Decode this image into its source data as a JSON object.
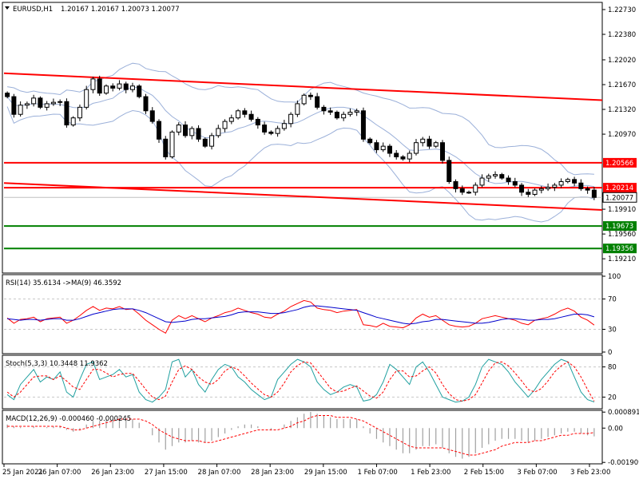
{
  "header": {
    "symbol": "EURUSD,H1",
    "ohlc": "1.20167 1.20167 1.20073 1.20077"
  },
  "colors": {
    "candle_body": "#000000",
    "channel_line": "#ff0000",
    "support_line": "#008000",
    "bollinger": "#9bb0d9",
    "rsi_line": "#ff0000",
    "rsi_ma": "#0000cc",
    "stoch_main": "#20a0a0",
    "stoch_signal": "#ff0000",
    "macd_hist": "#a0a0a0",
    "macd_signal": "#ff0000",
    "grid": "#c8c8c8"
  },
  "chart_data": [
    {
      "type": "candlestick",
      "name": "main",
      "ylim": [
        1.1902,
        1.2282
      ],
      "y_ticks": [
        "1.22730",
        "1.22380",
        "1.22020",
        "1.21670",
        "1.21320",
        "1.20970",
        "1.19910",
        "1.19560",
        "1.19210"
      ],
      "current_price": "1.20077",
      "x_labels": [
        "25 Jan 2021",
        "26 Jan 07:00",
        "26 Jan 23:00",
        "27 Jan 15:00",
        "28 Jan 07:00",
        "28 Jan 23:00",
        "29 Jan 15:00",
        "1 Feb 07:00",
        "1 Feb 23:00",
        "2 Feb 15:00",
        "3 Feb 07:00",
        "3 Feb 23:00"
      ],
      "close": [
        1.215,
        1.2125,
        1.2138,
        1.214,
        1.2148,
        1.2135,
        1.214,
        1.2142,
        1.2143,
        1.211,
        1.212,
        1.2135,
        1.216,
        1.2175,
        1.2155,
        1.2165,
        1.2162,
        1.2168,
        1.216,
        1.2165,
        1.215,
        1.213,
        1.2115,
        1.209,
        1.2065,
        1.21,
        1.211,
        1.2095,
        1.2105,
        1.209,
        1.208,
        1.2095,
        1.2105,
        1.2115,
        1.212,
        1.213,
        1.2125,
        1.2118,
        1.211,
        1.21,
        1.2098,
        1.2105,
        1.2112,
        1.2125,
        1.214,
        1.2152,
        1.215,
        1.2135,
        1.213,
        1.2128,
        1.212,
        1.2125,
        1.2128,
        1.213,
        1.209,
        1.2085,
        1.2075,
        1.208,
        1.207,
        1.2065,
        1.2062,
        1.207,
        1.2085,
        1.209,
        1.208,
        1.2085,
        1.206,
        1.203,
        1.202,
        1.2015,
        1.2015,
        1.2025,
        1.2035,
        1.2038,
        1.204,
        1.2035,
        1.203,
        1.2025,
        1.2015,
        1.2012,
        1.2018,
        1.202,
        1.2022,
        1.2025,
        1.203,
        1.2033,
        1.2028,
        1.202,
        1.2018,
        1.20077
      ],
      "high_low_spread": 0.0012,
      "channel_top": {
        "from": 1.2183,
        "to": 1.2145
      },
      "channel_bottom": {
        "from": 1.2028,
        "to": 1.199
      },
      "horizontal_levels": [
        {
          "value": 1.20566,
          "label": "1.20566",
          "kind": "resistance"
        },
        {
          "value": 1.20214,
          "label": "1.20214",
          "kind": "resistance"
        },
        {
          "value": 1.19673,
          "label": "1.19673",
          "kind": "support"
        },
        {
          "value": 1.19356,
          "label": "1.19356",
          "kind": "support"
        }
      ],
      "bollinger_width": 0.0035
    },
    {
      "type": "line",
      "name": "rsi",
      "title": "RSI(14) 35.6134 ->MA(9) 46.3592",
      "ylim": [
        0,
        100
      ],
      "y_ticks": [
        "100",
        "70",
        "30",
        "0"
      ],
      "levels": [
        70,
        30
      ],
      "rsi": [
        45,
        38,
        43,
        44,
        46,
        40,
        44,
        45,
        46,
        38,
        42,
        48,
        55,
        60,
        55,
        58,
        57,
        60,
        56,
        57,
        50,
        42,
        36,
        30,
        25,
        42,
        48,
        44,
        48,
        44,
        40,
        45,
        48,
        52,
        54,
        58,
        55,
        52,
        50,
        46,
        45,
        50,
        54,
        60,
        64,
        68,
        66,
        58,
        56,
        55,
        52,
        54,
        55,
        56,
        36,
        35,
        33,
        38,
        34,
        33,
        32,
        36,
        45,
        50,
        46,
        48,
        42,
        36,
        34,
        33,
        34,
        38,
        44,
        46,
        48,
        46,
        44,
        42,
        38,
        36,
        42,
        44,
        46,
        50,
        55,
        58,
        54,
        46,
        42,
        35.6
      ],
      "ma": [
        44,
        43,
        42,
        43,
        43,
        42,
        43,
        44,
        44,
        42,
        42,
        44,
        47,
        50,
        52,
        54,
        56,
        57,
        57,
        57,
        55,
        52,
        48,
        44,
        40,
        39,
        40,
        41,
        43,
        44,
        44,
        45,
        46,
        47,
        49,
        52,
        53,
        53,
        53,
        52,
        51,
        51,
        52,
        54,
        56,
        59,
        61,
        61,
        60,
        59,
        58,
        57,
        56,
        55,
        52,
        49,
        46,
        44,
        42,
        40,
        38,
        37,
        38,
        40,
        41,
        43,
        43,
        42,
        41,
        40,
        39,
        38,
        38,
        39,
        41,
        43,
        44,
        44,
        43,
        42,
        42,
        43,
        43,
        44,
        46,
        48,
        50,
        50,
        49,
        46.4
      ]
    },
    {
      "type": "line",
      "name": "stochastic",
      "title": "Stoch(5,3,3) 10.3448 11.9362",
      "ylim": [
        0,
        100
      ],
      "y_ticks": [
        "80",
        "20"
      ],
      "levels": [
        80,
        20
      ],
      "main": [
        25,
        15,
        45,
        60,
        75,
        50,
        60,
        55,
        70,
        30,
        20,
        55,
        85,
        90,
        55,
        60,
        65,
        75,
        60,
        65,
        30,
        15,
        10,
        20,
        35,
        90,
        95,
        60,
        75,
        45,
        30,
        55,
        75,
        85,
        80,
        60,
        50,
        35,
        25,
        15,
        20,
        55,
        70,
        85,
        95,
        90,
        80,
        50,
        35,
        25,
        30,
        40,
        45,
        40,
        12,
        15,
        25,
        50,
        85,
        75,
        60,
        45,
        80,
        90,
        70,
        45,
        20,
        15,
        10,
        12,
        20,
        45,
        80,
        95,
        90,
        85,
        70,
        50,
        35,
        20,
        35,
        55,
        70,
        85,
        95,
        90,
        60,
        30,
        15,
        10.3
      ],
      "signal": [
        30,
        20,
        30,
        45,
        60,
        62,
        62,
        55,
        62,
        52,
        40,
        35,
        55,
        75,
        75,
        68,
        60,
        65,
        67,
        67,
        52,
        35,
        20,
        15,
        22,
        50,
        75,
        82,
        75,
        60,
        50,
        45,
        55,
        72,
        80,
        75,
        62,
        48,
        36,
        25,
        20,
        30,
        48,
        70,
        83,
        90,
        88,
        72,
        55,
        38,
        30,
        32,
        38,
        42,
        32,
        22,
        18,
        30,
        55,
        72,
        72,
        60,
        62,
        72,
        80,
        68,
        45,
        27,
        15,
        12,
        15,
        25,
        48,
        72,
        88,
        90,
        82,
        68,
        52,
        35,
        30,
        37,
        52,
        70,
        82,
        90,
        80,
        60,
        35,
        11.9
      ]
    },
    {
      "type": "bar",
      "name": "macd",
      "title": "MACD(12,26,9) -0.000460 -0.000245",
      "ylim": [
        -0.0019,
        0.0009
      ],
      "y_ticks": [
        "0.000891",
        "0.00",
        "-0.001909"
      ],
      "histogram": [
        0.0002,
        0.0001,
        5e-05,
        0.0,
        0.0001,
        0.0,
        5e-05,
        0.0001,
        0.00012,
        -0.0001,
        -0.0002,
        -0.0001,
        0.0002,
        0.0004,
        0.0004,
        0.0005,
        0.0005,
        0.0006,
        0.0005,
        0.0005,
        0.0003,
        0.0,
        -0.0004,
        -0.0008,
        -0.0012,
        -0.001,
        -0.0008,
        -0.0008,
        -0.0007,
        -0.0008,
        -0.0008,
        -0.0007,
        -0.0005,
        -0.0003,
        -0.0001,
        0.0001,
        0.0002,
        0.0002,
        0.0001,
        0.0,
        -0.0001,
        0.0,
        0.0002,
        0.0004,
        0.0006,
        0.0008,
        0.0009,
        0.0008,
        0.0007,
        0.0006,
        0.0005,
        0.0005,
        0.0005,
        0.0005,
        0.0001,
        -0.0003,
        -0.0006,
        -0.0008,
        -0.001,
        -0.0012,
        -0.0014,
        -0.0014,
        -0.0012,
        -0.001,
        -0.001,
        -0.0009,
        -0.0011,
        -0.0014,
        -0.0016,
        -0.0017,
        -0.0016,
        -0.0014,
        -0.0011,
        -0.0009,
        -0.0007,
        -0.0006,
        -0.0006,
        -0.0006,
        -0.0007,
        -0.0008,
        -0.0007,
        -0.0006,
        -0.0005,
        -0.0004,
        -0.0003,
        -0.0002,
        -0.0002,
        -0.0003,
        -0.0004,
        -0.00046
      ],
      "signal": [
        0.0001,
        0.0001,
        0.0001,
        0.0001,
        0.0001,
        0.0001,
        0.0001,
        0.0001,
        0.0001,
        0.0,
        -0.0001,
        -0.0001,
        0.0,
        0.0001,
        0.0002,
        0.0003,
        0.0004,
        0.0005,
        0.0005,
        0.0005,
        0.0005,
        0.0004,
        0.0002,
        -0.0001,
        -0.0003,
        -0.0005,
        -0.0006,
        -0.0007,
        -0.0007,
        -0.0007,
        -0.0008,
        -0.0008,
        -0.0007,
        -0.0006,
        -0.0005,
        -0.0004,
        -0.0003,
        -0.0002,
        -0.0001,
        -0.0001,
        -0.0001,
        -0.0001,
        0.0,
        0.0001,
        0.0003,
        0.0004,
        0.0006,
        0.0007,
        0.0007,
        0.0007,
        0.0006,
        0.0006,
        0.0006,
        0.0005,
        0.0004,
        0.0002,
        0.0,
        -0.0002,
        -0.0004,
        -0.0006,
        -0.0008,
        -0.001,
        -0.0011,
        -0.0011,
        -0.0011,
        -0.0011,
        -0.0011,
        -0.0012,
        -0.0013,
        -0.0014,
        -0.0015,
        -0.0015,
        -0.0014,
        -0.0013,
        -0.0012,
        -0.001,
        -0.0009,
        -0.0008,
        -0.0008,
        -0.0008,
        -0.0007,
        -0.0007,
        -0.0006,
        -0.0005,
        -0.0004,
        -0.0004,
        -0.0003,
        -0.0003,
        -0.0003,
        -0.000245
      ]
    }
  ]
}
